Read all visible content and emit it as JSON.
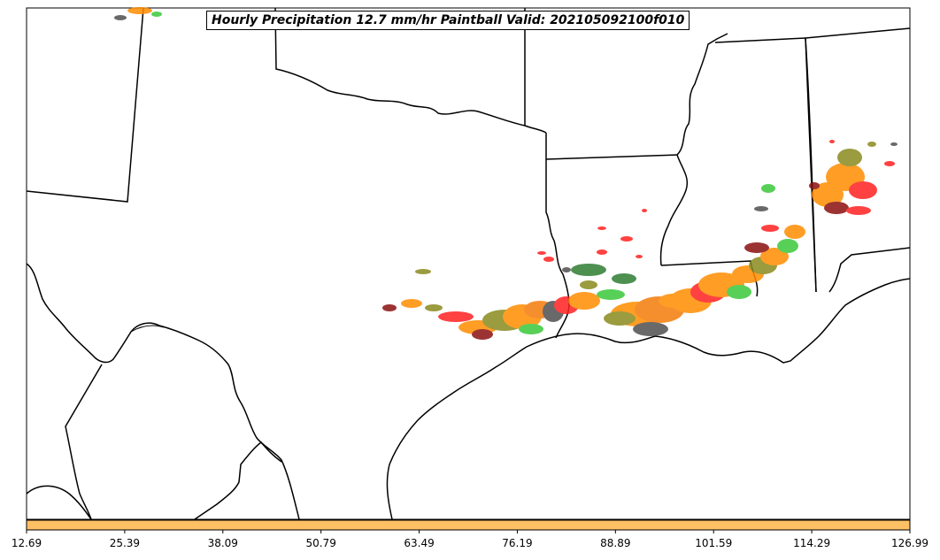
{
  "title": "Hourly Precipitation 12.7 mm/hr Paintball Valid: 202105092100f010",
  "colorbar": {
    "color": "#fdc064",
    "ticks": [
      "12.69",
      "25.39",
      "38.09",
      "50.79",
      "63.49",
      "76.19",
      "88.89",
      "101.59",
      "114.29",
      "126.99"
    ]
  },
  "palette": {
    "orange": "#ff8c00",
    "dark_orange": "#f47c0a",
    "red": "#ff2020",
    "green": "#3cc83c",
    "dark_green": "#2e7d32",
    "olive": "#8a8a1e",
    "dark_red": "#8b1010",
    "gray": "#505050"
  }
}
